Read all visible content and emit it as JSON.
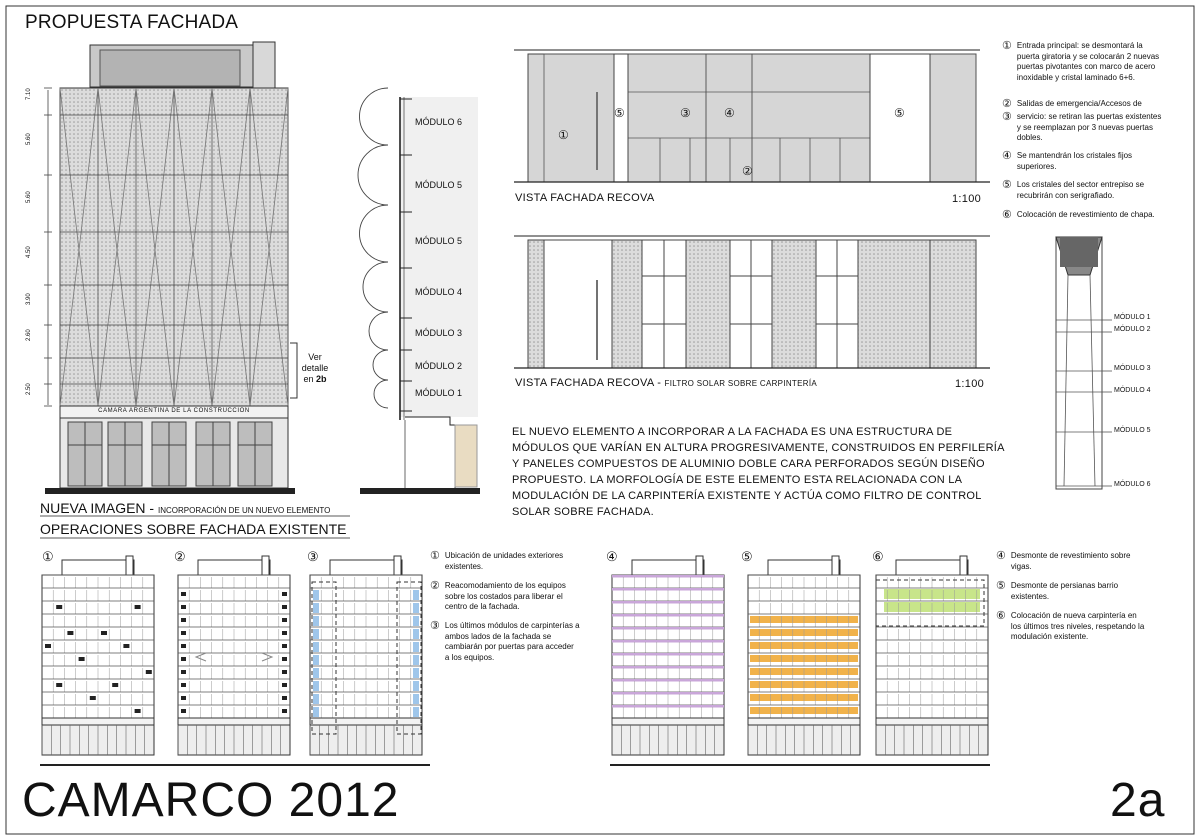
{
  "title": "PROPUESTA FACHADA",
  "building_sign": "CAMARA ARGENTINA DE LA CONSTRUCCION",
  "dimensions": [
    "7.10",
    "5.60",
    "5.60",
    "4.50",
    "3.90",
    "2.60",
    "2.50"
  ],
  "detail_note": {
    "line1": "Ver",
    "line2": "detalle",
    "prefix": "en",
    "ref": "2b"
  },
  "section_modules": [
    "MÓDULO 6",
    "MÓDULO 5",
    "MÓDULO 5",
    "MÓDULO 4",
    "MÓDULO 3",
    "MÓDULO 2",
    "MÓDULO 1"
  ],
  "elev1": {
    "caption": "VISTA FACHADA RECOVA",
    "scale": "1:100",
    "callouts": [
      "①",
      "⑤",
      "③",
      "④",
      "②",
      "⑤"
    ]
  },
  "elev2": {
    "caption": "VISTA FACHADA RECOVA -",
    "caption_sub": "FILTRO SOLAR SOBRE CARPINTERÍA",
    "scale": "1:100"
  },
  "notes_top": [
    {
      "num": "①",
      "text": "Entrada principal: se desmontará la puerta giratoria y se colocarán 2 nuevas puertas pivotantes con marco de acero inoxidable y cristal laminado 6+6."
    },
    {
      "num": "②",
      "text": "Salidas de emergencia/Accesos de"
    },
    {
      "num": "③",
      "text": "servicio: se retiran las puertas existentes y se reemplazan por 3 nuevas puertas dobles."
    },
    {
      "num": "④",
      "text": "Se mantendrán los cristales fijos superiores."
    },
    {
      "num": "⑤",
      "text": "Los cristales del sector entrepiso se recubrirán con serigrafiado."
    },
    {
      "num": "⑥",
      "text": "Colocación de revestimiento de chapa."
    }
  ],
  "detail_modules": [
    "MÓDULO 1",
    "MÓDULO 2",
    "MÓDULO 3",
    "MÓDULO 4",
    "MÓDULO 5",
    "MÓDULO 6"
  ],
  "description": "EL NUEVO ELEMENTO A INCORPORAR A LA FACHADA ES UNA ESTRUCTURA DE MÓDULOS QUE VARÍAN EN ALTURA PROGRESIVAMENTE, CONSTRUIDOS EN PERFILERÍA Y PANELES COMPUESTOS DE ALUMINIO DOBLE CARA PERFORADOS SEGÚN DISEÑO PROPUESTO. LA MORFOLOGÍA DE ESTE ELEMENTO ESTA RELACIONADA CON LA MODULACIÓN DE LA CARPINTERÍA EXISTENTE Y ACTÚA COMO FILTRO DE CONTROL SOLAR SOBRE FACHADA.",
  "nueva_imagen": {
    "label": "NUEVA IMAGEN -",
    "sub": "INCORPORACIÓN DE UN NUEVO ELEMENTO"
  },
  "operaciones_title": "OPERACIONES SOBRE FACHADA EXISTENTE",
  "op_numbers": [
    "①",
    "②",
    "③",
    "④",
    "⑤",
    "⑥"
  ],
  "op_notes_a": [
    {
      "num": "①",
      "text": "Ubicación de unidades exteriores existentes."
    },
    {
      "num": "②",
      "text": "Reacomodamiento de los equipos sobre los costados para liberar el centro de la fachada."
    },
    {
      "num": "③",
      "text": "Los últimos módulos de carpinterías a ambos lados de la fachada se cambiarán por puertas para acceder a los equipos."
    }
  ],
  "op_notes_b": [
    {
      "num": "④",
      "text": "Desmonte de revestimiento sobre vigas."
    },
    {
      "num": "⑤",
      "text": "Desmonte de persianas barrio existentes."
    },
    {
      "num": "⑥",
      "text": "Colocación de nueva carpintería en los últimos tres niveles, respetando la modulación existente."
    }
  ],
  "footer_title": "CAMARCO 2012",
  "sheet_number": "2a",
  "colors": {
    "line": "#222222",
    "grey": "#bdbdbd",
    "highlight_orange": "#f1b24a",
    "highlight_green": "#c8e58a",
    "highlight_purple": "#c9a6d9",
    "highlight_blue": "#9fc6ea"
  }
}
